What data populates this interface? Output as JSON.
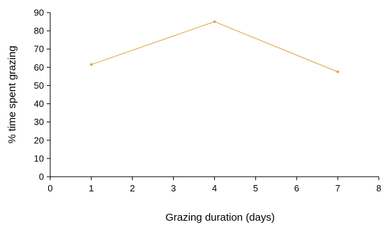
{
  "chart_data": {
    "type": "line",
    "title": "",
    "xlabel": "Grazing duration (days)",
    "ylabel": "% time spent grazing",
    "xlim": [
      0,
      8
    ],
    "ylim": [
      0,
      90
    ],
    "x_ticks": [
      "0",
      "1",
      "2",
      "3",
      "4",
      "5",
      "6",
      "7",
      "8"
    ],
    "y_ticks": [
      "0",
      "10",
      "20",
      "30",
      "40",
      "50",
      "60",
      "70",
      "80",
      "90"
    ],
    "grid": false,
    "legend": "none",
    "series": [
      {
        "x": [
          1,
          4,
          7
        ],
        "y": [
          61.5,
          85,
          57.5
        ],
        "color": "#E0A040"
      }
    ],
    "axis_color": "#000000"
  }
}
